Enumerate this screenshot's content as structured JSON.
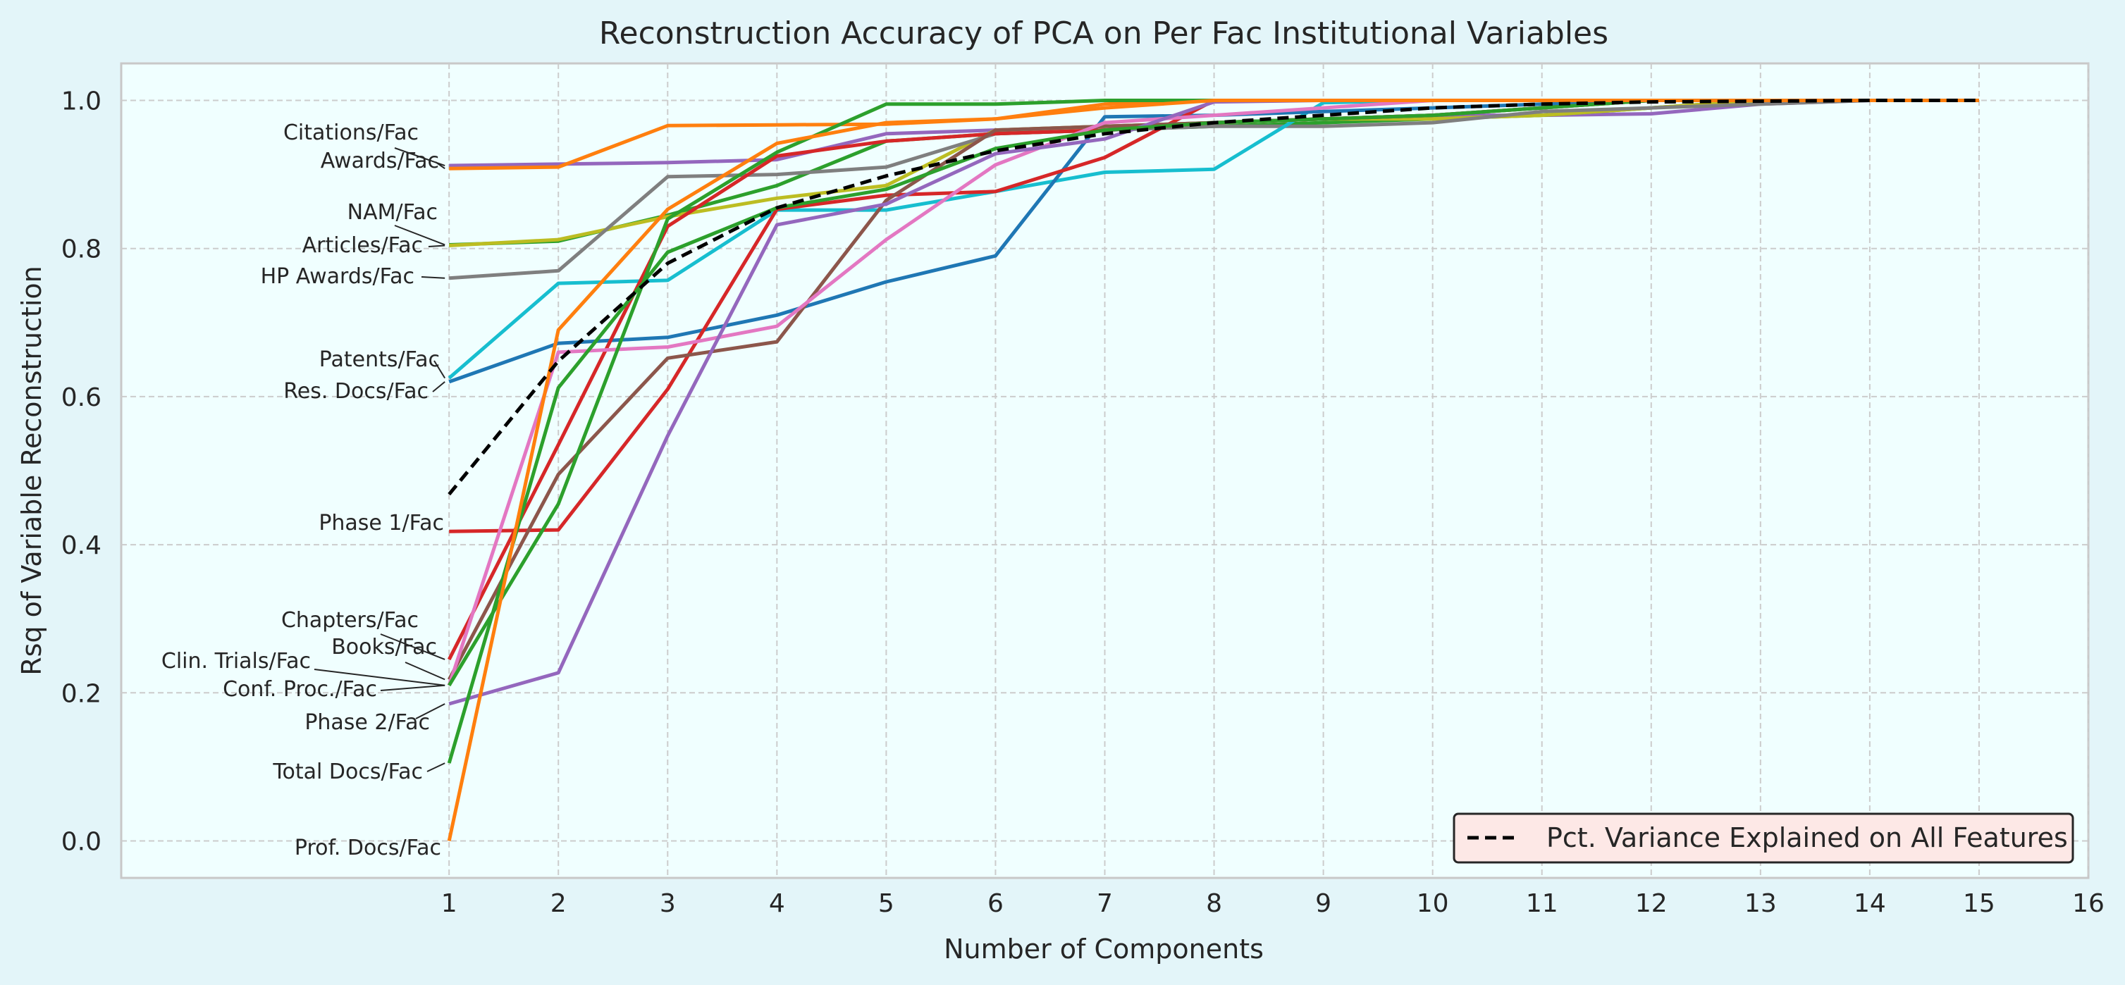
{
  "chart_data": {
    "type": "line",
    "title": "Reconstruction Accuracy of PCA on Per Fac Institutional Variables",
    "xlabel": "Number of Components",
    "ylabel": "Rsq of Variable Reconstruction",
    "xlim": [
      -2,
      16
    ],
    "ylim": [
      -0.05,
      1.05
    ],
    "xticks": [
      1,
      2,
      3,
      4,
      5,
      6,
      7,
      8,
      9,
      10,
      11,
      12,
      13,
      14,
      15,
      16
    ],
    "yticks": [
      0.0,
      0.2,
      0.4,
      0.6,
      0.8,
      1.0
    ],
    "ytick_labels": [
      "0.0",
      "0.2",
      "0.4",
      "0.6",
      "0.8",
      "1.0"
    ],
    "grid": true,
    "legend_position": "lower-right",
    "x": [
      1,
      2,
      3,
      4,
      5,
      6,
      7,
      8,
      9,
      10,
      11,
      12,
      13,
      14,
      15
    ],
    "series": [
      {
        "label": "Citations/Fac",
        "color": "#9467bd",
        "values": [
          0.912,
          0.914,
          0.916,
          0.92,
          0.955,
          0.96,
          0.965,
          0.97,
          0.975,
          0.98,
          0.98,
          0.982,
          0.995,
          1.0,
          1.0
        ]
      },
      {
        "label": "Awards/Fac",
        "color": "#ff7f0e",
        "values": [
          0.908,
          0.91,
          0.966,
          0.967,
          0.968,
          0.975,
          0.995,
          1.0,
          1.0,
          1.0,
          1.0,
          1.0,
          1.0,
          1.0,
          1.0
        ]
      },
      {
        "label": "NAM/Fac",
        "color": "#2ca02c",
        "values": [
          0.805,
          0.81,
          0.845,
          0.885,
          0.945,
          0.955,
          0.96,
          0.965,
          0.97,
          0.975,
          0.98,
          0.99,
          1.0,
          1.0,
          1.0
        ]
      },
      {
        "label": "Articles/Fac",
        "color": "#bcbd22",
        "values": [
          0.804,
          0.812,
          0.843,
          0.868,
          0.885,
          0.96,
          0.965,
          0.97,
          0.975,
          0.975,
          0.98,
          0.99,
          1.0,
          1.0,
          1.0
        ]
      },
      {
        "label": "HP Awards/Fac",
        "color": "#7f7f7f",
        "values": [
          0.76,
          0.77,
          0.897,
          0.9,
          0.91,
          0.955,
          0.96,
          0.965,
          0.965,
          0.97,
          0.985,
          0.99,
          0.995,
          1.0,
          1.0
        ]
      },
      {
        "label": "Patents/Fac",
        "color": "#17becf",
        "values": [
          0.625,
          0.753,
          0.757,
          0.852,
          0.852,
          0.877,
          0.903,
          0.907,
          0.997,
          1.0,
          1.0,
          1.0,
          1.0,
          1.0,
          1.0
        ]
      },
      {
        "label": "Res. Docs/Fac",
        "color": "#1f77b4",
        "values": [
          0.62,
          0.672,
          0.68,
          0.71,
          0.755,
          0.79,
          0.978,
          0.98,
          0.985,
          0.99,
          0.995,
          1.0,
          1.0,
          1.0,
          1.0
        ]
      },
      {
        "label": "Phase 1/Fac",
        "color": "#d62728",
        "values": [
          0.418,
          0.42,
          0.61,
          0.853,
          0.872,
          0.877,
          0.923,
          1.0,
          1.0,
          1.0,
          1.0,
          1.0,
          1.0,
          1.0,
          1.0
        ]
      },
      {
        "label": "Chapters/Fac",
        "color": "#d62728",
        "values": [
          0.245,
          0.535,
          0.83,
          0.925,
          0.945,
          0.955,
          0.96,
          0.97,
          0.975,
          0.98,
          0.99,
          1.0,
          1.0,
          1.0,
          1.0
        ]
      },
      {
        "label": "Books/Fac",
        "color": "#8c564b",
        "values": [
          0.218,
          0.495,
          0.652,
          0.674,
          0.865,
          0.96,
          0.965,
          0.97,
          0.975,
          0.98,
          0.99,
          1.0,
          1.0,
          1.0,
          1.0
        ]
      },
      {
        "label": "Clin. Trials/Fac",
        "color": "#e377c2",
        "values": [
          0.21,
          0.66,
          0.667,
          0.695,
          0.812,
          0.913,
          0.97,
          0.98,
          0.99,
          1.0,
          1.0,
          1.0,
          1.0,
          1.0,
          1.0
        ]
      },
      {
        "label": "Conf. Proc./Fac",
        "color": "#2ca02c",
        "values": [
          0.21,
          0.455,
          0.84,
          0.93,
          0.995,
          0.995,
          1.0,
          1.0,
          1.0,
          1.0,
          1.0,
          1.0,
          1.0,
          1.0,
          1.0
        ]
      },
      {
        "label": "Phase 2/Fac",
        "color": "#9467bd",
        "values": [
          0.185,
          0.227,
          0.547,
          0.832,
          0.86,
          0.928,
          0.948,
          0.998,
          1.0,
          1.0,
          1.0,
          1.0,
          1.0,
          1.0,
          1.0
        ]
      },
      {
        "label": "Total Docs/Fac",
        "color": "#2ca02c",
        "values": [
          0.105,
          0.612,
          0.795,
          0.855,
          0.88,
          0.935,
          0.96,
          0.97,
          0.975,
          0.98,
          0.99,
          1.0,
          1.0,
          1.0,
          1.0
        ]
      },
      {
        "label": "Prof. Docs/Fac",
        "color": "#ff7f0e",
        "values": [
          0.0,
          0.69,
          0.853,
          0.942,
          0.97,
          0.975,
          0.99,
          1.0,
          1.0,
          1.0,
          1.0,
          1.0,
          1.0,
          1.0,
          1.0
        ]
      }
    ],
    "reference_line": {
      "name": "Pct. Variance Explained on All Features",
      "color": "#000000",
      "style": "dashed",
      "values": [
        0.468,
        0.648,
        0.78,
        0.855,
        0.898,
        0.932,
        0.955,
        0.97,
        0.98,
        0.99,
        0.995,
        0.998,
        0.999,
        1.0,
        1.0
      ]
    }
  }
}
